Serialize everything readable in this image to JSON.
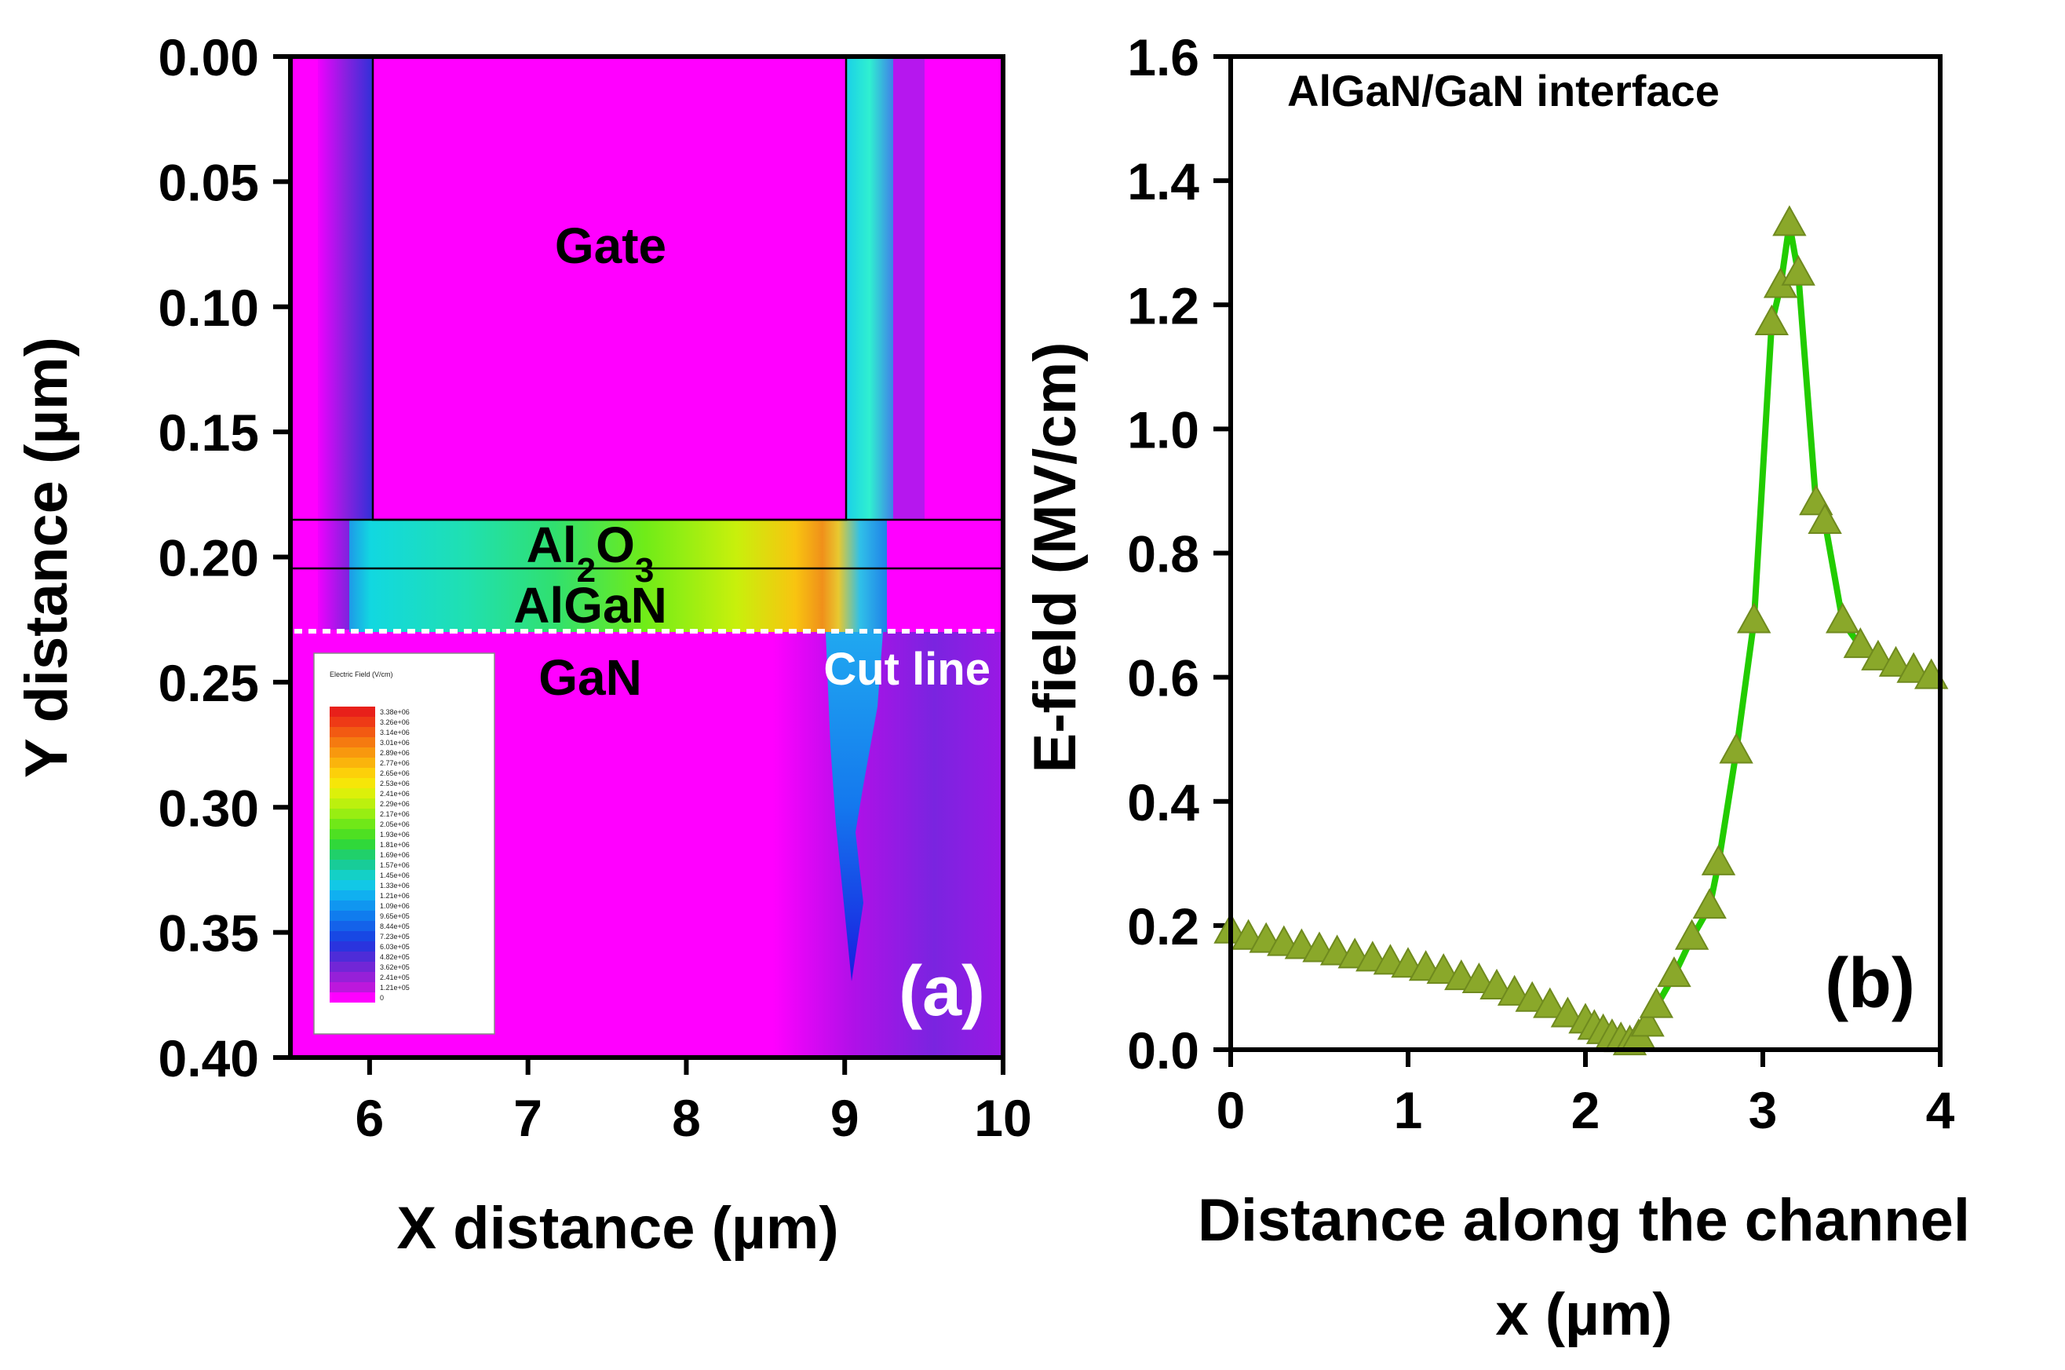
{
  "chart_data": [
    {
      "type": "heatmap",
      "panel_label": "(a)",
      "title": "",
      "xlabel": "X distance (µm)",
      "ylabel": "Y distance (µm)",
      "xlim": [
        5.5,
        10
      ],
      "ylim": [
        0.0,
        0.4
      ],
      "y_inverted": true,
      "xticks": [
        "6",
        "7",
        "8",
        "9",
        "10"
      ],
      "yticks": [
        "0.00",
        "0.05",
        "0.10",
        "0.15",
        "0.20",
        "0.25",
        "0.30",
        "0.35",
        "0.40"
      ],
      "xtick_values": [
        6,
        7,
        8,
        9,
        10
      ],
      "ytick_values": [
        0.0,
        0.05,
        0.1,
        0.15,
        0.2,
        0.25,
        0.3,
        0.35,
        0.4
      ],
      "regions": {
        "gate": "Gate",
        "oxide_prefix": "Al",
        "oxide_sub1": "2",
        "oxide_mid": "O",
        "oxide_sub2": "3",
        "barrier": "AlGaN",
        "buffer": "GaN"
      },
      "layer_boundaries_um": {
        "gate_x": [
          6.0,
          9.0
        ],
        "oxide_top": 0.183,
        "oxide_bottom": 0.203,
        "algan_bottom": 0.228
      },
      "cut_line_label": "Cut line",
      "cut_line_y": 0.228,
      "legend": {
        "title": "Electric Field (V/cm)",
        "levels": [
          "3.38e+06",
          "3.26e+06",
          "3.14e+06",
          "3.01e+06",
          "2.89e+06",
          "2.77e+06",
          "2.65e+06",
          "2.53e+06",
          "2.41e+06",
          "2.29e+06",
          "2.17e+06",
          "2.05e+06",
          "1.93e+06",
          "1.81e+06",
          "1.69e+06",
          "1.57e+06",
          "1.45e+06",
          "1.33e+06",
          "1.21e+06",
          "1.09e+06",
          "9.65e+05",
          "8.44e+05",
          "7.23e+05",
          "6.03e+05",
          "4.82e+05",
          "3.62e+05",
          "2.41e+05",
          "1.21e+05",
          "0"
        ],
        "colors": [
          "#e8201a",
          "#ee3a16",
          "#f25a12",
          "#f57a10",
          "#f8980e",
          "#fab40c",
          "#fcd00a",
          "#f6e608",
          "#dcf00a",
          "#bcf00e",
          "#98ee12",
          "#70e818",
          "#4ee022",
          "#30d83a",
          "#20d06a",
          "#18cc98",
          "#14d0c6",
          "#12c8e6",
          "#10b0f0",
          "#1096f0",
          "#107cee",
          "#1462ea",
          "#1848e4",
          "#2a34de",
          "#4e2cd8",
          "#7226d6",
          "#9620d8",
          "#bc18dc",
          "#ff00ff"
        ]
      }
    },
    {
      "type": "line",
      "panel_label": "(b)",
      "title": "AlGaN/GaN interface",
      "xlabel_line1": "Distance along the channel",
      "xlabel_line2": "x (µm)",
      "ylabel": "E-field (MV/cm)",
      "xlim": [
        0,
        4
      ],
      "ylim": [
        0.0,
        1.6
      ],
      "xticks": [
        "0",
        "1",
        "2",
        "3",
        "4"
      ],
      "yticks": [
        "0.0",
        "0.2",
        "0.4",
        "0.6",
        "0.8",
        "1.0",
        "1.2",
        "1.4",
        "1.6"
      ],
      "xtick_values": [
        0,
        1,
        2,
        3,
        4
      ],
      "ytick_values": [
        0.0,
        0.2,
        0.4,
        0.6,
        0.8,
        1.0,
        1.2,
        1.4,
        1.6
      ],
      "line_color": "#22cc00",
      "marker_color": "#8aa82a",
      "series": [
        {
          "name": "E-field",
          "x": [
            0.0,
            0.1,
            0.2,
            0.3,
            0.4,
            0.5,
            0.6,
            0.7,
            0.8,
            0.9,
            1.0,
            1.1,
            1.2,
            1.3,
            1.4,
            1.5,
            1.6,
            1.7,
            1.8,
            1.9,
            2.0,
            2.05,
            2.1,
            2.15,
            2.2,
            2.25,
            2.3,
            2.35,
            2.4,
            2.5,
            2.6,
            2.7,
            2.75,
            2.85,
            2.95,
            3.05,
            3.1,
            3.15,
            3.2,
            3.3,
            3.35,
            3.45,
            3.55,
            3.65,
            3.75,
            3.85,
            3.95
          ],
          "y": [
            0.19,
            0.18,
            0.175,
            0.17,
            0.165,
            0.16,
            0.155,
            0.15,
            0.145,
            0.14,
            0.135,
            0.13,
            0.125,
            0.115,
            0.11,
            0.1,
            0.09,
            0.08,
            0.07,
            0.055,
            0.045,
            0.035,
            0.028,
            0.02,
            0.015,
            0.01,
            0.02,
            0.04,
            0.07,
            0.12,
            0.18,
            0.23,
            0.3,
            0.48,
            0.69,
            1.17,
            1.23,
            1.33,
            1.25,
            0.88,
            0.85,
            0.69,
            0.65,
            0.63,
            0.62,
            0.61,
            0.6
          ]
        }
      ]
    }
  ]
}
